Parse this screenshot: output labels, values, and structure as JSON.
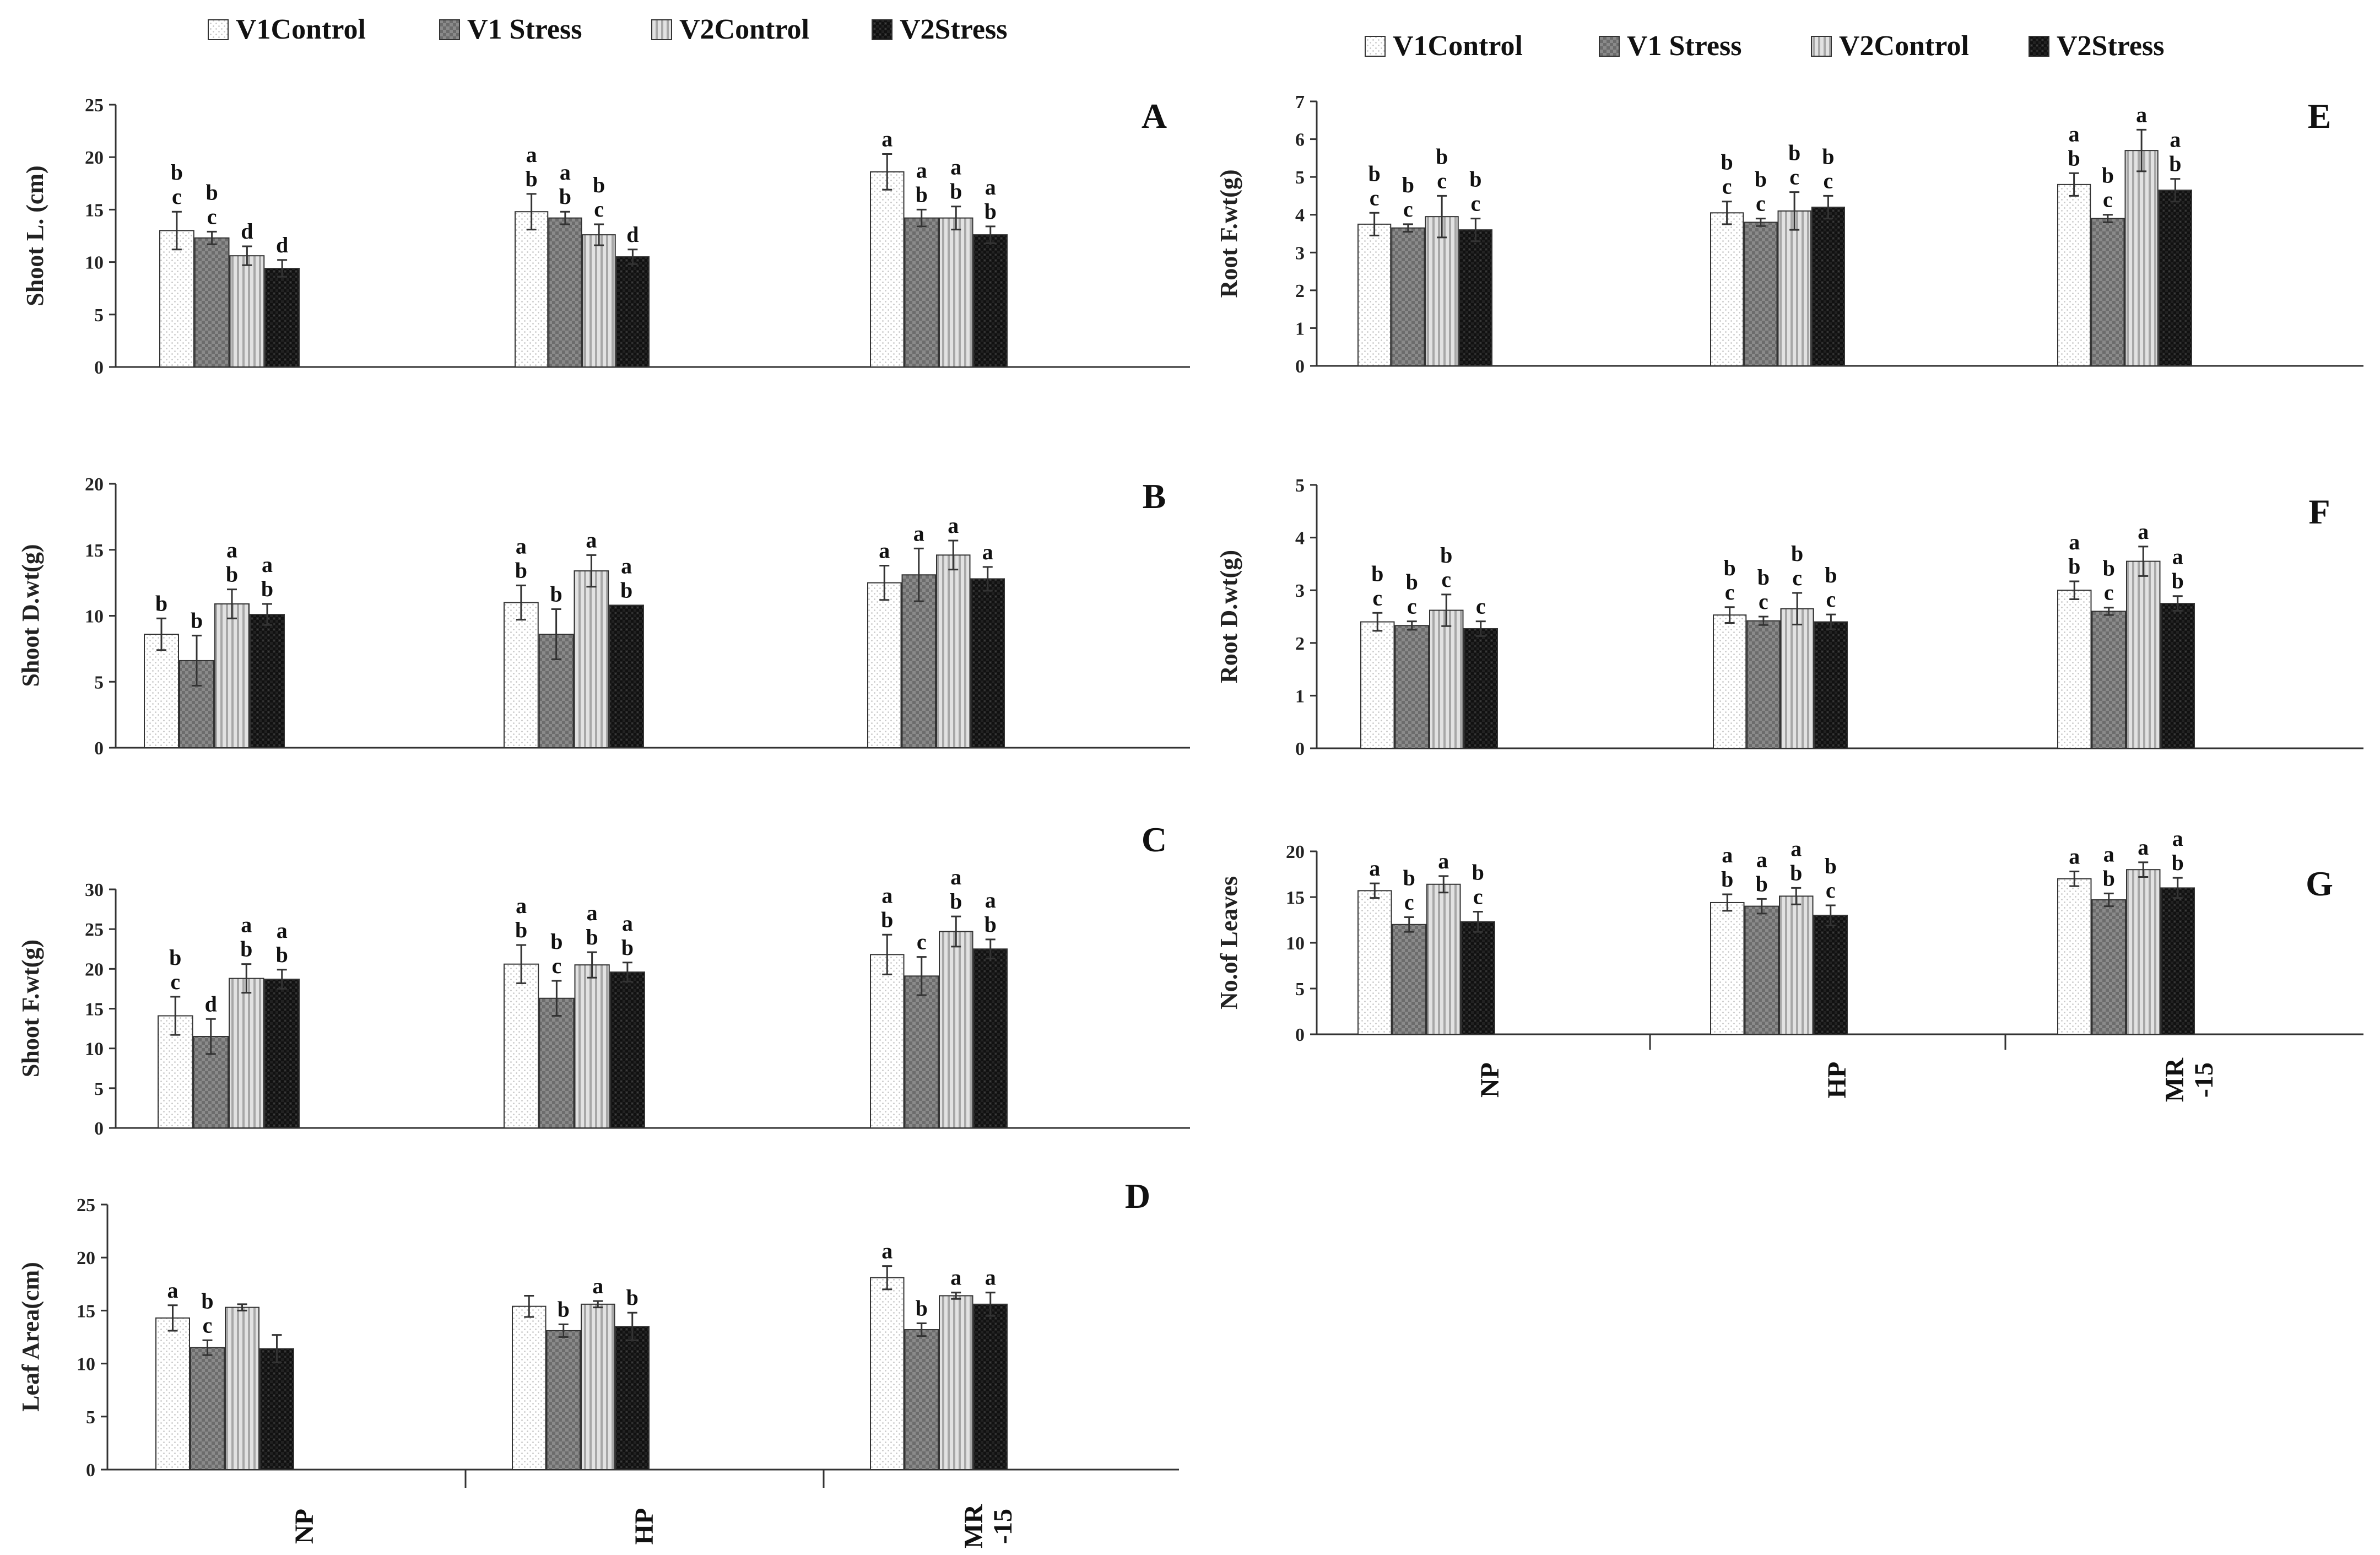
{
  "legend": [
    {
      "name": "V1Control",
      "pattern": "dots"
    },
    {
      "name": "V1 Stress",
      "pattern": "check"
    },
    {
      "name": "V2Control",
      "pattern": "vstripe"
    },
    {
      "name": "V2Stress",
      "pattern": "dark"
    }
  ],
  "legend_labels": [
    "V1Control",
    "V1 Stress",
    "V2Control",
    "V2Stress"
  ],
  "categories": [
    "NP",
    "HP",
    "MR -15"
  ],
  "chart_data": [
    {
      "panel": "A",
      "type": "bar",
      "ylabel": "Shoot L. (cm)",
      "ylim": [
        0,
        25
      ],
      "yticks": [
        0,
        5,
        10,
        15,
        20,
        25
      ],
      "categories": [
        "NP",
        "HP",
        "MR -15"
      ],
      "series": [
        {
          "name": "V1Control",
          "values": [
            13.0,
            14.8,
            18.6
          ],
          "errors": [
            1.8,
            1.7,
            1.7
          ],
          "labels": [
            [
              "b",
              "c"
            ],
            [
              "a",
              "b"
            ],
            [
              "a"
            ]
          ]
        },
        {
          "name": "V1 Stress",
          "values": [
            12.3,
            14.2,
            14.2
          ],
          "errors": [
            0.6,
            0.6,
            0.8
          ],
          "labels": [
            [
              "b",
              "c"
            ],
            [
              "a",
              "b"
            ],
            [
              "a",
              "b"
            ]
          ]
        },
        {
          "name": "V2Control",
          "values": [
            10.6,
            12.6,
            14.2
          ],
          "errors": [
            0.9,
            1.0,
            1.1
          ],
          "labels": [
            [
              "d"
            ],
            [
              "b",
              "c"
            ],
            [
              "a",
              "b"
            ]
          ]
        },
        {
          "name": "V2Stress",
          "values": [
            9.4,
            10.5,
            12.6
          ],
          "errors": [
            0.8,
            0.7,
            0.8
          ],
          "labels": [
            [
              "d"
            ],
            [
              "d"
            ],
            [
              "a",
              "b"
            ]
          ]
        }
      ]
    },
    {
      "panel": "B",
      "type": "bar",
      "ylabel": "Shoot D.wt(g)",
      "ylim": [
        0,
        20
      ],
      "yticks": [
        0,
        5,
        10,
        15,
        20
      ],
      "categories": [
        "NP",
        "HP",
        "MR -15"
      ],
      "series": [
        {
          "name": "V1Control",
          "values": [
            8.6,
            11.0,
            12.5
          ],
          "errors": [
            1.2,
            1.3,
            1.3
          ],
          "labels": [
            [
              "b"
            ],
            [
              "a",
              "b"
            ],
            [
              "a"
            ]
          ]
        },
        {
          "name": "V1 Stress",
          "values": [
            6.6,
            8.6,
            13.1
          ],
          "errors": [
            1.9,
            1.9,
            2.0
          ],
          "labels": [
            [
              "b"
            ],
            [
              "b"
            ],
            [
              "a"
            ]
          ]
        },
        {
          "name": "V2Control",
          "values": [
            10.9,
            13.4,
            14.6
          ],
          "errors": [
            1.1,
            1.2,
            1.1
          ],
          "labels": [
            [
              "a",
              "b"
            ],
            [
              "a"
            ],
            [
              "a"
            ]
          ]
        },
        {
          "name": "V2Stress",
          "values": [
            10.1,
            10.8,
            12.8
          ],
          "errors": [
            0.8,
            0.0,
            0.9
          ],
          "labels": [
            [
              "a",
              "b"
            ],
            [
              "a",
              "b"
            ],
            [
              "a"
            ]
          ]
        }
      ]
    },
    {
      "panel": "C",
      "type": "bar",
      "ylabel": "Shoot F.wt(g)",
      "ylim": [
        0,
        30
      ],
      "yticks": [
        0,
        5,
        10,
        15,
        20,
        25,
        30
      ],
      "categories": [
        "NP",
        "HP",
        "MR -15"
      ],
      "series": [
        {
          "name": "V1Control",
          "values": [
            14.1,
            20.6,
            21.8
          ],
          "errors": [
            2.4,
            2.4,
            2.5
          ],
          "labels": [
            [
              "b",
              "c"
            ],
            [
              "a",
              "b"
            ],
            [
              "a",
              "b"
            ]
          ]
        },
        {
          "name": "V1 Stress",
          "values": [
            11.5,
            16.3,
            19.1
          ],
          "errors": [
            2.2,
            2.2,
            2.4
          ],
          "labels": [
            [
              "d"
            ],
            [
              "b",
              "c"
            ],
            [
              "c"
            ]
          ]
        },
        {
          "name": "V2Control",
          "values": [
            18.8,
            20.5,
            24.7
          ],
          "errors": [
            1.8,
            1.6,
            1.9
          ],
          "labels": [
            [
              "a",
              "b"
            ],
            [
              "a",
              "b"
            ],
            [
              "a",
              "b"
            ]
          ]
        },
        {
          "name": "V2Stress",
          "values": [
            18.7,
            19.6,
            22.5
          ],
          "errors": [
            1.2,
            1.2,
            1.2
          ],
          "labels": [
            [
              "a",
              "b"
            ],
            [
              "a",
              "b"
            ],
            [
              "a",
              "b"
            ]
          ]
        }
      ]
    },
    {
      "panel": "D",
      "type": "bar",
      "ylabel": "Leaf Area(cm)",
      "ylim": [
        0,
        25
      ],
      "yticks": [
        0,
        5,
        10,
        15,
        20,
        25
      ],
      "categories": [
        "NP",
        "HP",
        "MR -15"
      ],
      "series": [
        {
          "name": "V1Control",
          "values": [
            14.3,
            15.4,
            18.1
          ],
          "errors": [
            1.2,
            1.0,
            1.1
          ],
          "labels": [
            [
              "a"
            ],
            [],
            [
              "a"
            ]
          ]
        },
        {
          "name": "V1 Stress",
          "values": [
            11.5,
            13.1,
            13.2
          ],
          "errors": [
            0.7,
            0.6,
            0.6
          ],
          "labels": [
            [
              "b",
              "c"
            ],
            [
              "b"
            ],
            [
              "b"
            ]
          ]
        },
        {
          "name": "V2Control",
          "values": [
            15.3,
            15.6,
            16.4
          ],
          "errors": [
            0.3,
            0.3,
            0.3
          ],
          "labels": [
            [],
            [
              "a"
            ],
            [
              "a"
            ]
          ]
        },
        {
          "name": "V2Stress",
          "values": [
            11.4,
            13.5,
            15.6
          ],
          "errors": [
            1.3,
            1.3,
            1.1
          ],
          "labels": [
            [],
            [
              "b"
            ],
            [
              "a"
            ]
          ]
        }
      ]
    },
    {
      "panel": "E",
      "type": "bar",
      "ylabel": "Root F.wt(g)",
      "ylim": [
        0,
        7
      ],
      "yticks": [
        0,
        1,
        2,
        3,
        4,
        5,
        6,
        7
      ],
      "categories": [
        "NP",
        "HP",
        "MR -15"
      ],
      "series": [
        {
          "name": "V1Control",
          "values": [
            3.75,
            4.05,
            4.8
          ],
          "errors": [
            0.3,
            0.3,
            0.3
          ],
          "labels": [
            [
              "b",
              "c"
            ],
            [
              "b",
              "c"
            ],
            [
              "a",
              "b"
            ]
          ]
        },
        {
          "name": "V1 Stress",
          "values": [
            3.65,
            3.8,
            3.9
          ],
          "errors": [
            0.1,
            0.1,
            0.1
          ],
          "labels": [
            [
              "b",
              "c"
            ],
            [
              "b",
              "c"
            ],
            [
              "b",
              "c"
            ]
          ]
        },
        {
          "name": "V2Control",
          "values": [
            3.95,
            4.1,
            5.7
          ],
          "errors": [
            0.55,
            0.5,
            0.55
          ],
          "labels": [
            [
              "b",
              "c"
            ],
            [
              "b",
              "c"
            ],
            [
              "a"
            ]
          ]
        },
        {
          "name": "V2Stress",
          "values": [
            3.6,
            4.2,
            4.65
          ],
          "errors": [
            0.3,
            0.3,
            0.3
          ],
          "labels": [
            [
              "b",
              "c"
            ],
            [
              "b",
              "c"
            ],
            [
              "a",
              "b"
            ]
          ]
        }
      ]
    },
    {
      "panel": "F",
      "type": "bar",
      "ylabel": "Root D.wt(g)",
      "ylim": [
        0,
        5
      ],
      "yticks": [
        0,
        1,
        2,
        3,
        4,
        5
      ],
      "categories": [
        "NP",
        "HP",
        "MR -15"
      ],
      "series": [
        {
          "name": "V1Control",
          "values": [
            2.4,
            2.53,
            3.0
          ],
          "errors": [
            0.17,
            0.15,
            0.17
          ],
          "labels": [
            [
              "b",
              "c"
            ],
            [
              "b",
              "c"
            ],
            [
              "a",
              "b"
            ]
          ]
        },
        {
          "name": "V1 Stress",
          "values": [
            2.33,
            2.42,
            2.6
          ],
          "errors": [
            0.08,
            0.08,
            0.07
          ],
          "labels": [
            [
              "b",
              "c"
            ],
            [
              "b",
              "c"
            ],
            [
              "b",
              "c"
            ]
          ]
        },
        {
          "name": "V2Control",
          "values": [
            2.62,
            2.65,
            3.55
          ],
          "errors": [
            0.3,
            0.3,
            0.28
          ],
          "labels": [
            [
              "b",
              "c"
            ],
            [
              "b",
              "c"
            ],
            [
              "a"
            ]
          ]
        },
        {
          "name": "V2Stress",
          "values": [
            2.27,
            2.4,
            2.75
          ],
          "errors": [
            0.14,
            0.14,
            0.14
          ],
          "labels": [
            [
              "c"
            ],
            [
              "b",
              "c"
            ],
            [
              "a",
              "b"
            ]
          ]
        }
      ]
    },
    {
      "panel": "G",
      "type": "bar",
      "ylabel": "No.of Leaves",
      "ylim": [
        0,
        20
      ],
      "yticks": [
        0,
        5,
        10,
        15,
        20
      ],
      "categories": [
        "NP",
        "HP",
        "MR -15"
      ],
      "series": [
        {
          "name": "V1Control",
          "values": [
            15.7,
            14.4,
            17.0
          ],
          "errors": [
            0.8,
            0.9,
            0.8
          ],
          "labels": [
            [
              "a"
            ],
            [
              "a",
              "b"
            ],
            [
              "a"
            ]
          ]
        },
        {
          "name": "V1 Stress",
          "values": [
            12.0,
            14.0,
            14.7
          ],
          "errors": [
            0.8,
            0.8,
            0.7
          ],
          "labels": [
            [
              "b",
              "c"
            ],
            [
              "a",
              "b"
            ],
            [
              "a",
              "b"
            ]
          ]
        },
        {
          "name": "V2Control",
          "values": [
            16.4,
            15.1,
            18.0
          ],
          "errors": [
            0.9,
            0.9,
            0.8
          ],
          "labels": [
            [
              "a"
            ],
            [
              "a",
              "b"
            ],
            [
              "a"
            ]
          ]
        },
        {
          "name": "V2Stress",
          "values": [
            12.3,
            13.0,
            16.0
          ],
          "errors": [
            1.1,
            1.1,
            1.1
          ],
          "labels": [
            [
              "b",
              "c"
            ],
            [
              "b",
              "c"
            ],
            [
              "a",
              "b"
            ]
          ]
        }
      ]
    }
  ]
}
